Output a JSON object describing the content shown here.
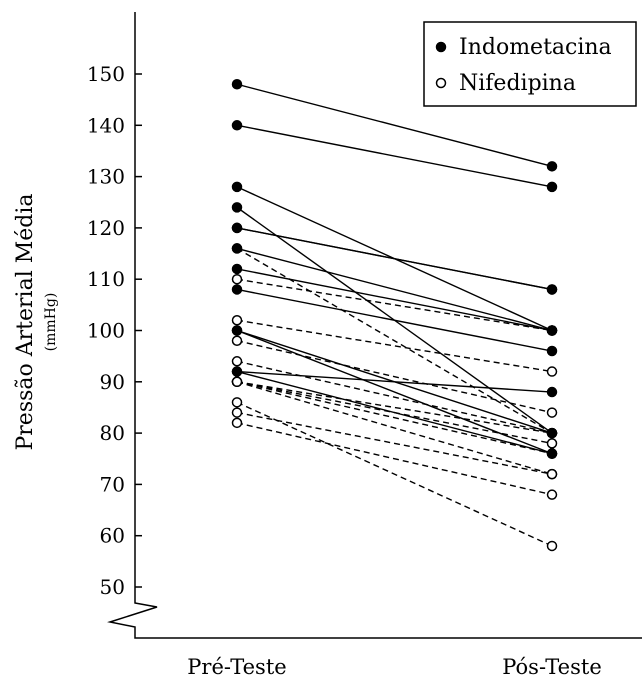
{
  "chart_data": {
    "type": "line",
    "categories": [
      "Pré-Teste",
      "Pós-Teste"
    ],
    "ylabel": "Pressão Arterial Média",
    "yunit": "(mmHg)",
    "ylim": [
      50,
      150
    ],
    "yticks": [
      50,
      60,
      70,
      80,
      90,
      100,
      110,
      120,
      130,
      140,
      150
    ],
    "axis_break": true,
    "grid": false,
    "legend": {
      "position": "top-right",
      "entries": [
        {
          "label": "Indometacina",
          "marker": "filled-circle",
          "line": "solid"
        },
        {
          "label": "Nifedipina",
          "marker": "open-circle",
          "line": "dashed"
        }
      ]
    },
    "series": [
      {
        "name": "Indometacina",
        "pairs": [
          [
            148,
            132
          ],
          [
            140,
            128
          ],
          [
            128,
            100
          ],
          [
            124,
            80
          ],
          [
            120,
            108
          ],
          [
            120,
            108
          ],
          [
            116,
            100
          ],
          [
            112,
            100
          ],
          [
            108,
            96
          ],
          [
            100,
            80
          ],
          [
            100,
            76
          ],
          [
            92,
            88
          ],
          [
            92,
            76
          ]
        ]
      },
      {
        "name": "Nifedipina",
        "pairs": [
          [
            116,
            80
          ],
          [
            110,
            100
          ],
          [
            102,
            92
          ],
          [
            98,
            84
          ],
          [
            94,
            80
          ],
          [
            90,
            80
          ],
          [
            90,
            78
          ],
          [
            90,
            76
          ],
          [
            90,
            72
          ],
          [
            86,
            58
          ],
          [
            84,
            72
          ],
          [
            82,
            68
          ]
        ]
      }
    ]
  }
}
